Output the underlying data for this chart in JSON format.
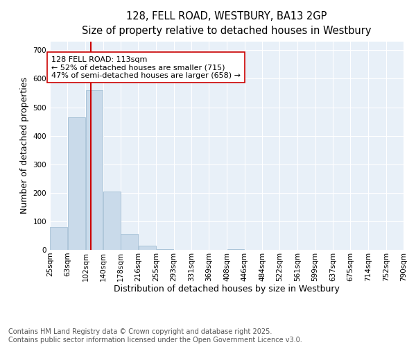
{
  "title_line1": "128, FELL ROAD, WESTBURY, BA13 2GP",
  "title_line2": "Size of property relative to detached houses in Westbury",
  "xlabel": "Distribution of detached houses by size in Westbury",
  "ylabel": "Number of detached properties",
  "annotation_title": "128 FELL ROAD: 113sqm",
  "annotation_line2": "← 52% of detached houses are smaller (715)",
  "annotation_line3": "47% of semi-detached houses are larger (658) →",
  "property_line_x": 113,
  "bins": [
    25,
    63,
    102,
    140,
    178,
    216,
    255,
    293,
    331,
    369,
    408,
    446,
    484,
    522,
    561,
    599,
    637,
    675,
    714,
    752,
    790
  ],
  "bar_values": [
    80,
    465,
    560,
    205,
    55,
    15,
    2,
    0,
    0,
    0,
    2,
    0,
    0,
    0,
    0,
    0,
    0,
    0,
    0,
    0
  ],
  "bar_color": "#c9daea",
  "bar_edge_color": "#9ab8cf",
  "vline_color": "#cc0000",
  "ylim": [
    0,
    730
  ],
  "yticks": [
    0,
    100,
    200,
    300,
    400,
    500,
    600,
    700
  ],
  "plot_bg_color": "#e8f0f8",
  "footer_line1": "Contains HM Land Registry data © Crown copyright and database right 2025.",
  "footer_line2": "Contains public sector information licensed under the Open Government Licence v3.0.",
  "title_fontsize": 10.5,
  "subtitle_fontsize": 9.5,
  "axis_label_fontsize": 9,
  "tick_fontsize": 7.5,
  "annotation_fontsize": 8,
  "footer_fontsize": 7
}
